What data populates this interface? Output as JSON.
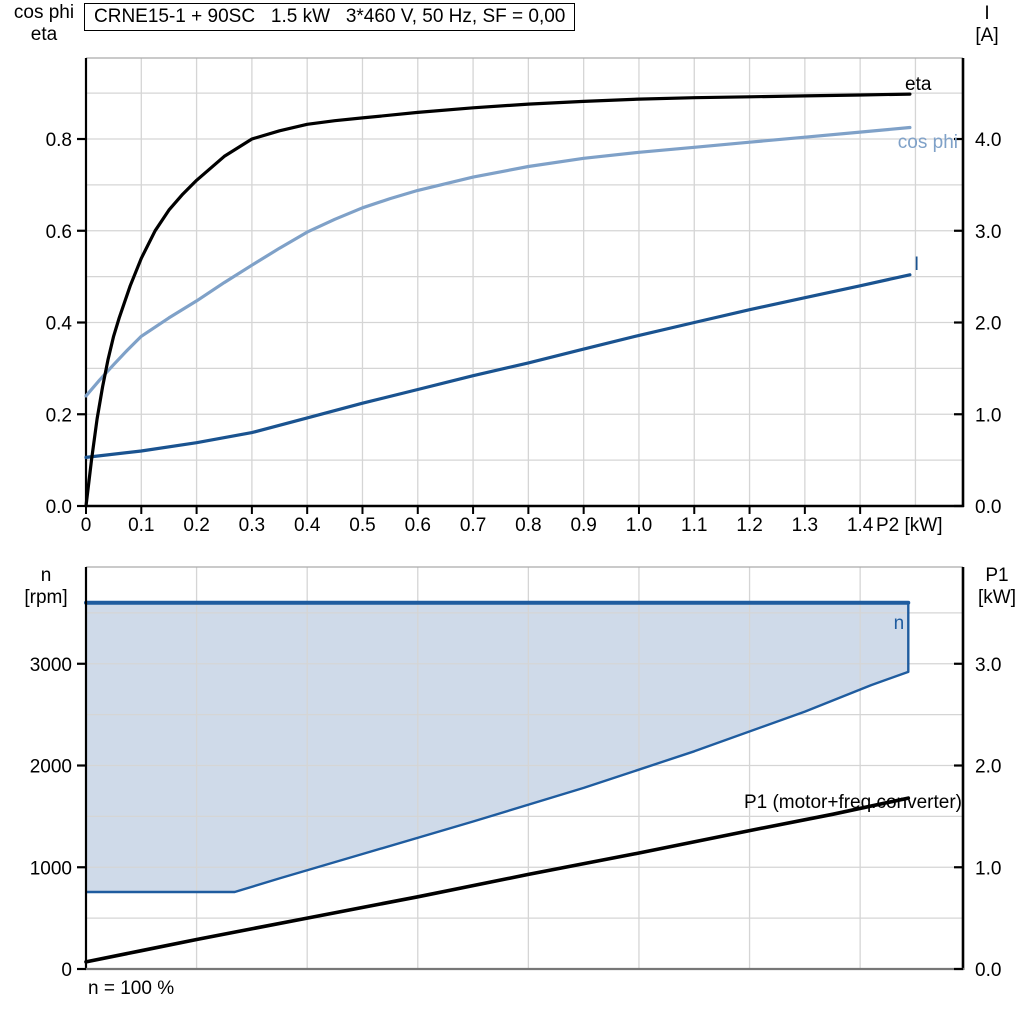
{
  "colors": {
    "black": "#000000",
    "cos_phi": "#7FA1C8",
    "current": "#1A5390",
    "n_line": "#1F5C9F",
    "n_fill": "#CFDAE9",
    "grid": "#D5D5D5",
    "border_gray": "#AAAAAA",
    "axis_gray": "#777777"
  },
  "chart_data": [
    {
      "id": "upper",
      "type": "line",
      "title": "CRNE15-1 + 90SC   1.5 kW   3*460 V, 50 Hz, SF = 0,00",
      "x_label": "P2 [kW]",
      "x_axis": {
        "range": [
          0,
          1.586
        ],
        "tick_values": [
          0,
          0.1,
          0.2,
          0.3,
          0.4,
          0.5,
          0.6,
          0.7,
          0.8,
          0.9,
          1.0,
          1.1,
          1.2,
          1.3,
          1.4
        ],
        "tick_labels": [
          "0",
          "0.1",
          "0.2",
          "0.3",
          "0.4",
          "0.5",
          "0.6",
          "0.7",
          "0.8",
          "0.9",
          "1.0",
          "1.1",
          "1.2",
          "1.3",
          "1.4"
        ],
        "grid_step": 0.1,
        "grid_max": 1.5
      },
      "left_axis": {
        "label_lines": [
          "cos phi",
          "eta"
        ],
        "range": [
          0,
          0.9766
        ],
        "tick_values": [
          0,
          0.2,
          0.4,
          0.6,
          0.8
        ],
        "tick_labels": [
          "0.0",
          "0.2",
          "0.4",
          "0.6",
          "0.8"
        ],
        "grid_step": 0.1
      },
      "right_axis": {
        "label_lines": [
          "I",
          "[A]"
        ],
        "range": [
          0,
          4.883
        ],
        "tick_values": [
          0,
          1,
          2,
          3,
          4
        ],
        "tick_labels": [
          "0.0",
          "1.0",
          "2.0",
          "3.0",
          "4.0"
        ],
        "grid_step": 0.5
      },
      "series": [
        {
          "name": "cos phi",
          "label": "cos phi",
          "axis": "left",
          "color_key": "cos_phi",
          "width": 3.2,
          "points": [
            [
              0,
              0.24
            ],
            [
              0.025,
              0.275
            ],
            [
              0.05,
              0.308
            ],
            [
              0.075,
              0.34
            ],
            [
              0.1,
              0.37
            ],
            [
              0.15,
              0.41
            ],
            [
              0.2,
              0.447
            ],
            [
              0.25,
              0.487
            ],
            [
              0.3,
              0.525
            ],
            [
              0.35,
              0.562
            ],
            [
              0.4,
              0.597
            ],
            [
              0.45,
              0.625
            ],
            [
              0.5,
              0.65
            ],
            [
              0.55,
              0.67
            ],
            [
              0.6,
              0.688
            ],
            [
              0.7,
              0.717
            ],
            [
              0.8,
              0.74
            ],
            [
              0.9,
              0.758
            ],
            [
              1.0,
              0.771
            ],
            [
              1.1,
              0.782
            ],
            [
              1.2,
              0.793
            ],
            [
              1.3,
              0.804
            ],
            [
              1.4,
              0.815
            ],
            [
              1.49,
              0.825
            ]
          ]
        },
        {
          "name": "I",
          "label": "I",
          "axis": "right",
          "color_key": "current",
          "width": 3.2,
          "points": [
            [
              0,
              0.53
            ],
            [
              0.1,
              0.6
            ],
            [
              0.2,
              0.69
            ],
            [
              0.3,
              0.8
            ],
            [
              0.4,
              0.96
            ],
            [
              0.5,
              1.12
            ],
            [
              0.6,
              1.27
            ],
            [
              0.7,
              1.42
            ],
            [
              0.8,
              1.56
            ],
            [
              0.9,
              1.71
            ],
            [
              1.0,
              1.86
            ],
            [
              1.1,
              2.0
            ],
            [
              1.2,
              2.14
            ],
            [
              1.3,
              2.27
            ],
            [
              1.4,
              2.4
            ],
            [
              1.49,
              2.52
            ]
          ]
        },
        {
          "name": "eta",
          "label": "eta",
          "axis": "left",
          "color_key": "black",
          "width": 3.2,
          "points": [
            [
              0,
              0
            ],
            [
              0.01,
              0.1
            ],
            [
              0.02,
              0.19
            ],
            [
              0.03,
              0.26
            ],
            [
              0.04,
              0.32
            ],
            [
              0.05,
              0.37
            ],
            [
              0.06,
              0.41
            ],
            [
              0.08,
              0.48
            ],
            [
              0.1,
              0.54
            ],
            [
              0.125,
              0.6
            ],
            [
              0.15,
              0.645
            ],
            [
              0.175,
              0.68
            ],
            [
              0.2,
              0.71
            ],
            [
              0.25,
              0.762
            ],
            [
              0.3,
              0.8
            ],
            [
              0.35,
              0.818
            ],
            [
              0.4,
              0.832
            ],
            [
              0.45,
              0.84
            ],
            [
              0.5,
              0.846
            ],
            [
              0.6,
              0.858
            ],
            [
              0.7,
              0.868
            ],
            [
              0.8,
              0.876
            ],
            [
              0.9,
              0.882
            ],
            [
              1.0,
              0.887
            ],
            [
              1.1,
              0.89
            ],
            [
              1.2,
              0.892
            ],
            [
              1.3,
              0.894
            ],
            [
              1.4,
              0.896
            ],
            [
              1.49,
              0.898
            ]
          ]
        }
      ]
    },
    {
      "id": "lower",
      "type": "line",
      "footnote": "n = 100 %",
      "x_axis": {
        "range": [
          0,
          1.586
        ],
        "tick_values": [],
        "tick_labels": [],
        "grid_step": 0.2,
        "grid_max": 1.4
      },
      "left_axis": {
        "label_lines": [
          "n",
          "[rpm]"
        ],
        "range": [
          0,
          3951
        ],
        "tick_values": [
          0,
          1000,
          2000,
          3000
        ],
        "tick_labels": [
          "0",
          "1000",
          "2000",
          "3000"
        ],
        "grid_step": 500
      },
      "right_axis": {
        "label_lines": [
          "P1",
          "[kW]"
        ],
        "range": [
          0,
          3.951
        ],
        "tick_values": [
          0,
          1,
          2,
          3
        ],
        "tick_labels": [
          "0.0",
          "1.0",
          "2.0",
          "3.0"
        ],
        "grid_step": 0.5
      },
      "n_region": {
        "label": "n",
        "top_n": 3600,
        "x_start": 0,
        "x_end": 1.487,
        "right_corner_n": 2920,
        "lower_boundary": [
          [
            0,
            757
          ],
          [
            0.269,
            757
          ],
          [
            0.35,
            890
          ],
          [
            0.5,
            1130
          ],
          [
            0.7,
            1450
          ],
          [
            0.9,
            1780
          ],
          [
            1.1,
            2140
          ],
          [
            1.3,
            2530
          ],
          [
            1.42,
            2790
          ],
          [
            1.487,
            2920
          ]
        ]
      },
      "series": [
        {
          "name": "P1 (motor+freq.converter)",
          "label": "P1 (motor+freq.converter)",
          "axis": "right",
          "color_key": "black",
          "width": 3.6,
          "points": [
            [
              0,
              0.07
            ],
            [
              0.1,
              0.18
            ],
            [
              0.2,
              0.29
            ],
            [
              0.4,
              0.5
            ],
            [
              0.6,
              0.71
            ],
            [
              0.8,
              0.93
            ],
            [
              1.0,
              1.14
            ],
            [
              1.2,
              1.36
            ],
            [
              1.35,
              1.52
            ],
            [
              1.487,
              1.68
            ]
          ]
        }
      ]
    }
  ]
}
